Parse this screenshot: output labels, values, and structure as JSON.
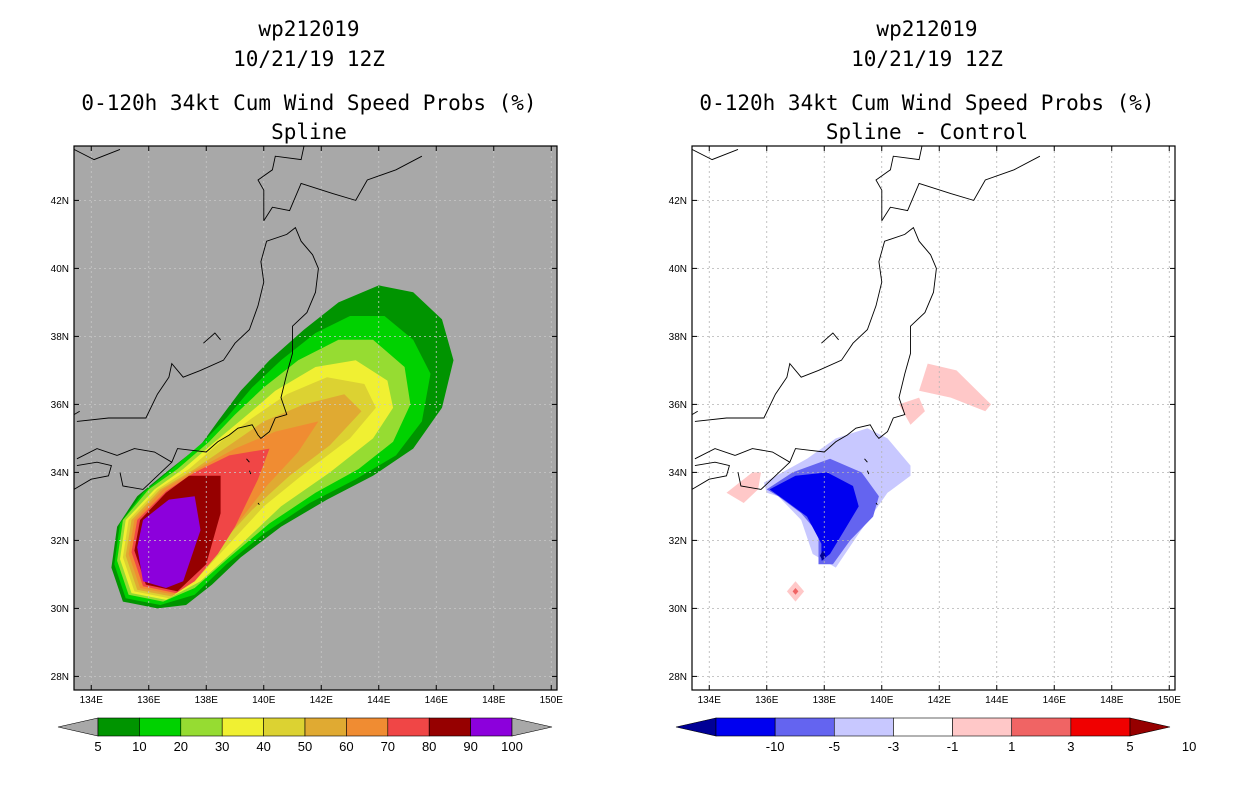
{
  "panels": [
    {
      "id": "left",
      "header": {
        "storm": "wp212019",
        "datetime": "10/21/19 12Z",
        "product": "0-120h 34kt Cum Wind Speed Probs (%)",
        "subtitle": "Spline"
      },
      "chart_data": {
        "type": "heatmap",
        "title": "0-120h 34kt Cum Wind Speed Probs (%)",
        "subtitle": "Spline",
        "units": "%",
        "xlim": [
          133.4,
          150.2
        ],
        "ylim": [
          27.6,
          43.6
        ],
        "xticks": [
          134,
          136,
          138,
          140,
          142,
          144,
          146,
          148,
          150
        ],
        "yticks": [
          28,
          30,
          32,
          34,
          36,
          38,
          40,
          42
        ],
        "xtick_labels": [
          "134E",
          "136E",
          "138E",
          "140E",
          "142E",
          "144E",
          "146E",
          "148E",
          "150E"
        ],
        "ytick_labels": [
          "28N",
          "30N",
          "32N",
          "34N",
          "36N",
          "38N",
          "40N",
          "42N"
        ],
        "background_color": "#a8a8a8",
        "grid": true,
        "colorbar": {
          "labels": [
            "5",
            "10",
            "20",
            "30",
            "40",
            "50",
            "60",
            "70",
            "80",
            "90",
            "100"
          ],
          "colors": [
            "#009400",
            "#00d200",
            "#96dc32",
            "#f0f032",
            "#dcd232",
            "#e0aa32",
            "#f08c32",
            "#f04646",
            "#960000",
            "#8c00dc"
          ]
        },
        "contours": [
          {
            "level": 5,
            "color": "#009400",
            "lon": [
              136.3,
              135.1,
              134.7,
              134.9,
              135.6,
              136.6,
              137.8,
              138.4,
              139.2,
              140.2,
              141.4,
              142.6,
              144.0,
              145.2,
              146.2,
              146.6,
              146.2,
              145.2,
              143.8,
              142.2,
              140.6,
              139.2,
              138.2,
              137.3,
              136.3
            ],
            "lat": [
              30.0,
              30.2,
              31.2,
              32.4,
              33.3,
              34.0,
              34.8,
              35.5,
              36.4,
              37.3,
              38.2,
              39.0,
              39.5,
              39.3,
              38.5,
              37.3,
              35.9,
              34.7,
              33.9,
              33.2,
              32.4,
              31.5,
              30.7,
              30.1,
              30.0
            ]
          },
          {
            "level": 10,
            "color": "#00d200",
            "lon": [
              136.4,
              135.2,
              134.8,
              135.0,
              135.8,
              136.8,
              137.9,
              138.7,
              139.6,
              140.6,
              141.8,
              143.0,
              144.2,
              145.2,
              145.8,
              145.5,
              144.6,
              143.2,
              141.6,
              140.0,
              138.7,
              137.6,
              136.4
            ],
            "lat": [
              30.1,
              30.3,
              31.3,
              32.5,
              33.4,
              34.1,
              34.9,
              35.6,
              36.5,
              37.3,
              38.1,
              38.6,
              38.6,
              37.9,
              36.9,
              35.5,
              34.5,
              33.8,
              33.1,
              32.2,
              31.3,
              30.4,
              30.1
            ]
          },
          {
            "level": 20,
            "color": "#96dc32",
            "lon": [
              136.5,
              135.3,
              134.9,
              135.1,
              136.0,
              137.0,
              138.1,
              139.0,
              140.0,
              141.2,
              142.6,
              143.8,
              144.9,
              145.1,
              144.5,
              143.3,
              141.8,
              140.2,
              138.8,
              137.6,
              136.5
            ],
            "lat": [
              30.2,
              30.4,
              31.4,
              32.6,
              33.5,
              34.1,
              34.9,
              35.7,
              36.5,
              37.3,
              37.9,
              37.9,
              37.1,
              36.0,
              34.9,
              34.1,
              33.4,
              32.5,
              31.5,
              30.6,
              30.2
            ]
          },
          {
            "level": 30,
            "color": "#f0f032",
            "lon": [
              136.6,
              135.4,
              135.0,
              135.2,
              136.2,
              137.2,
              138.3,
              139.3,
              140.4,
              141.8,
              143.2,
              144.3,
              144.5,
              143.8,
              142.3,
              140.6,
              139.1,
              137.8,
              136.6
            ],
            "lat": [
              30.25,
              30.45,
              31.45,
              32.6,
              33.5,
              34.1,
              34.9,
              35.6,
              36.4,
              37.1,
              37.3,
              36.7,
              35.9,
              35.0,
              34.0,
              33.0,
              31.8,
              30.8,
              30.25
            ]
          },
          {
            "level": 40,
            "color": "#dcd232",
            "lon": [
              136.7,
              135.5,
              135.1,
              135.3,
              136.3,
              137.4,
              138.5,
              139.6,
              140.8,
              142.2,
              143.5,
              143.9,
              143.0,
              141.6,
              140.0,
              138.8,
              137.6,
              136.7
            ],
            "lat": [
              30.3,
              30.5,
              31.5,
              32.6,
              33.5,
              34.1,
              34.9,
              35.6,
              36.3,
              36.8,
              36.6,
              35.9,
              35.0,
              34.1,
              33.0,
              31.9,
              30.8,
              30.3
            ]
          },
          {
            "level": 50,
            "color": "#e0aa32",
            "lon": [
              136.8,
              135.6,
              135.2,
              135.4,
              136.4,
              137.6,
              138.8,
              140.0,
              141.4,
              142.8,
              143.4,
              142.3,
              140.9,
              139.6,
              138.4,
              137.5,
              136.8
            ],
            "lat": [
              30.35,
              30.55,
              31.55,
              32.6,
              33.5,
              34.1,
              34.8,
              35.5,
              36.0,
              36.3,
              35.8,
              34.8,
              33.9,
              32.9,
              31.8,
              30.8,
              30.35
            ]
          },
          {
            "level": 60,
            "color": "#f08c32",
            "lon": [
              136.9,
              135.7,
              135.3,
              135.5,
              136.5,
              137.7,
              139.0,
              140.4,
              141.9,
              141.2,
              140.1,
              139.0,
              137.9,
              137.0,
              136.9
            ],
            "lat": [
              30.4,
              30.6,
              31.6,
              32.6,
              33.5,
              34.1,
              34.7,
              35.2,
              35.5,
              34.6,
              33.6,
              32.4,
              31.3,
              30.6,
              30.4
            ]
          },
          {
            "level": 70,
            "color": "#f04646",
            "lon": [
              136.95,
              135.8,
              135.4,
              135.6,
              136.6,
              137.6,
              138.8,
              140.2,
              139.8,
              139.0,
              138.4,
              137.6,
              136.95
            ],
            "lat": [
              30.45,
              30.65,
              31.65,
              32.6,
              33.45,
              34.0,
              34.5,
              34.7,
              33.8,
              32.4,
              31.6,
              30.8,
              30.45
            ]
          },
          {
            "level": 80,
            "color": "#960000",
            "lon": [
              137.0,
              135.9,
              135.5,
              135.7,
              136.6,
              137.4,
              138.5,
              138.5,
              138.0,
              137.0
            ],
            "lat": [
              30.5,
              30.7,
              31.7,
              32.6,
              33.4,
              33.9,
              33.9,
              32.8,
              31.3,
              30.5
            ]
          },
          {
            "level": 90,
            "color": "#8c00dc",
            "lon": [
              136.6,
              135.8,
              135.6,
              135.8,
              136.7,
              137.6,
              137.8,
              137.2,
              136.6
            ],
            "lat": [
              30.6,
              30.8,
              31.8,
              32.6,
              33.2,
              33.3,
              32.3,
              30.8,
              30.6
            ]
          }
        ]
      }
    },
    {
      "id": "right",
      "header": {
        "storm": "wp212019",
        "datetime": "10/21/19 12Z",
        "product": "0-120h 34kt Cum Wind Speed Probs (%)",
        "subtitle": "Spline - Control"
      },
      "chart_data": {
        "type": "heatmap",
        "title": "0-120h 34kt Cum Wind Speed Probs (%)",
        "subtitle": "Spline - Control",
        "units": "% difference",
        "xlim": [
          133.4,
          150.2
        ],
        "ylim": [
          27.6,
          43.6
        ],
        "xticks": [
          134,
          136,
          138,
          140,
          142,
          144,
          146,
          148,
          150
        ],
        "yticks": [
          28,
          30,
          32,
          34,
          36,
          38,
          40,
          42
        ],
        "xtick_labels": [
          "134E",
          "136E",
          "138E",
          "140E",
          "142E",
          "144E",
          "146E",
          "148E",
          "150E"
        ],
        "ytick_labels": [
          "28N",
          "30N",
          "32N",
          "34N",
          "36N",
          "38N",
          "40N",
          "42N"
        ],
        "background_color": "#ffffff",
        "grid": true,
        "colorbar": {
          "labels": [
            "-10",
            "-5",
            "-3",
            "-1",
            "1",
            "3",
            "5",
            "10"
          ],
          "colors": [
            "#000096",
            "#0000f0",
            "#6464f0",
            "#c8c8ff",
            "#ffffff",
            "#ffc8c8",
            "#f06464",
            "#f00000",
            "#960000"
          ]
        },
        "contours": [
          {
            "level": -1,
            "color": "#c8c8ff",
            "lon": [
              136.0,
              135.9,
              137.4,
              138.4,
              139.5,
              140.2,
              141.0,
              141.0,
              140.2,
              139.2,
              138.4,
              137.6,
              137.2,
              136.4,
              136.0
            ],
            "lat": [
              33.4,
              33.7,
              34.4,
              35.0,
              35.3,
              35.0,
              34.2,
              33.9,
              33.4,
              32.2,
              31.2,
              31.6,
              32.6,
              33.3,
              33.4
            ]
          },
          {
            "level": -3,
            "color": "#6464f0",
            "lon": [
              136.0,
              136.9,
              138.2,
              139.3,
              139.9,
              139.7,
              138.9,
              138.3,
              137.8,
              137.8,
              137.2,
              136.4,
              136.0
            ],
            "lat": [
              33.5,
              34.0,
              34.4,
              34.0,
              33.3,
              32.7,
              32.0,
              31.3,
              31.3,
              32.2,
              32.8,
              33.3,
              33.5
            ]
          },
          {
            "level": -5,
            "color": "#0000f0",
            "lon": [
              136.1,
              137.0,
              138.1,
              139.0,
              139.2,
              138.7,
              138.2,
              137.9,
              137.9,
              137.4,
              136.6,
              136.1
            ],
            "lat": [
              33.5,
              33.9,
              34.0,
              33.6,
              33.0,
              32.3,
              31.6,
              31.4,
              31.9,
              32.7,
              33.2,
              33.5
            ]
          },
          {
            "level": -10,
            "color": "#000096",
            "lon": [
              137.85,
              137.95,
              138.05,
              137.95,
              137.85
            ],
            "lat": [
              31.55,
              31.7,
              31.55,
              31.4,
              31.55
            ]
          },
          {
            "level": 1,
            "color": "#ffc8c8",
            "lon": [
              134.6,
              135.5,
              135.8,
              135.7,
              135.2,
              134.6
            ],
            "lat": [
              33.4,
              34.0,
              34.0,
              33.5,
              33.1,
              33.4
            ]
          },
          {
            "level": 1,
            "color": "#ffc8c8",
            "lon": [
              136.7,
              137.0,
              137.3,
              137.0,
              136.7
            ],
            "lat": [
              30.5,
              30.8,
              30.5,
              30.2,
              30.5
            ]
          },
          {
            "level": 1,
            "color": "#ffc8c8",
            "lon": [
              140.6,
              141.3,
              141.5,
              141.0,
              140.6
            ],
            "lat": [
              36.0,
              36.2,
              35.8,
              35.4,
              36.0
            ]
          },
          {
            "level": 1,
            "color": "#ffc8c8",
            "lon": [
              141.3,
              141.6,
              142.6,
              143.8,
              143.6,
              142.4,
              141.3
            ],
            "lat": [
              36.4,
              37.2,
              37.0,
              36.0,
              35.8,
              36.2,
              36.4
            ]
          },
          {
            "level": 3,
            "color": "#f06464",
            "lon": [
              136.9,
              137.0,
              137.1,
              137.0,
              136.9
            ],
            "lat": [
              30.5,
              30.6,
              30.5,
              30.4,
              30.5
            ]
          }
        ]
      }
    }
  ],
  "colorbars": {
    "left": {
      "labels": [
        "5",
        "10",
        "20",
        "30",
        "40",
        "50",
        "60",
        "70",
        "80",
        "90",
        "100"
      ],
      "colors": [
        "#009400",
        "#00d200",
        "#96dc32",
        "#f0f032",
        "#dcd232",
        "#e0aa32",
        "#f08c32",
        "#f04646",
        "#960000",
        "#8c00dc"
      ],
      "under": "#a8a8a8",
      "over": "#a8a8a8"
    },
    "right": {
      "labels": [
        "-10",
        "-5",
        "-3",
        "-1",
        "1",
        "3",
        "5",
        "10"
      ],
      "colors": [
        "#0000f0",
        "#6464f0",
        "#c8c8ff",
        "#ffffff",
        "#ffc8c8",
        "#f06464",
        "#f00000"
      ],
      "under": "#000096",
      "over": "#960000"
    }
  }
}
